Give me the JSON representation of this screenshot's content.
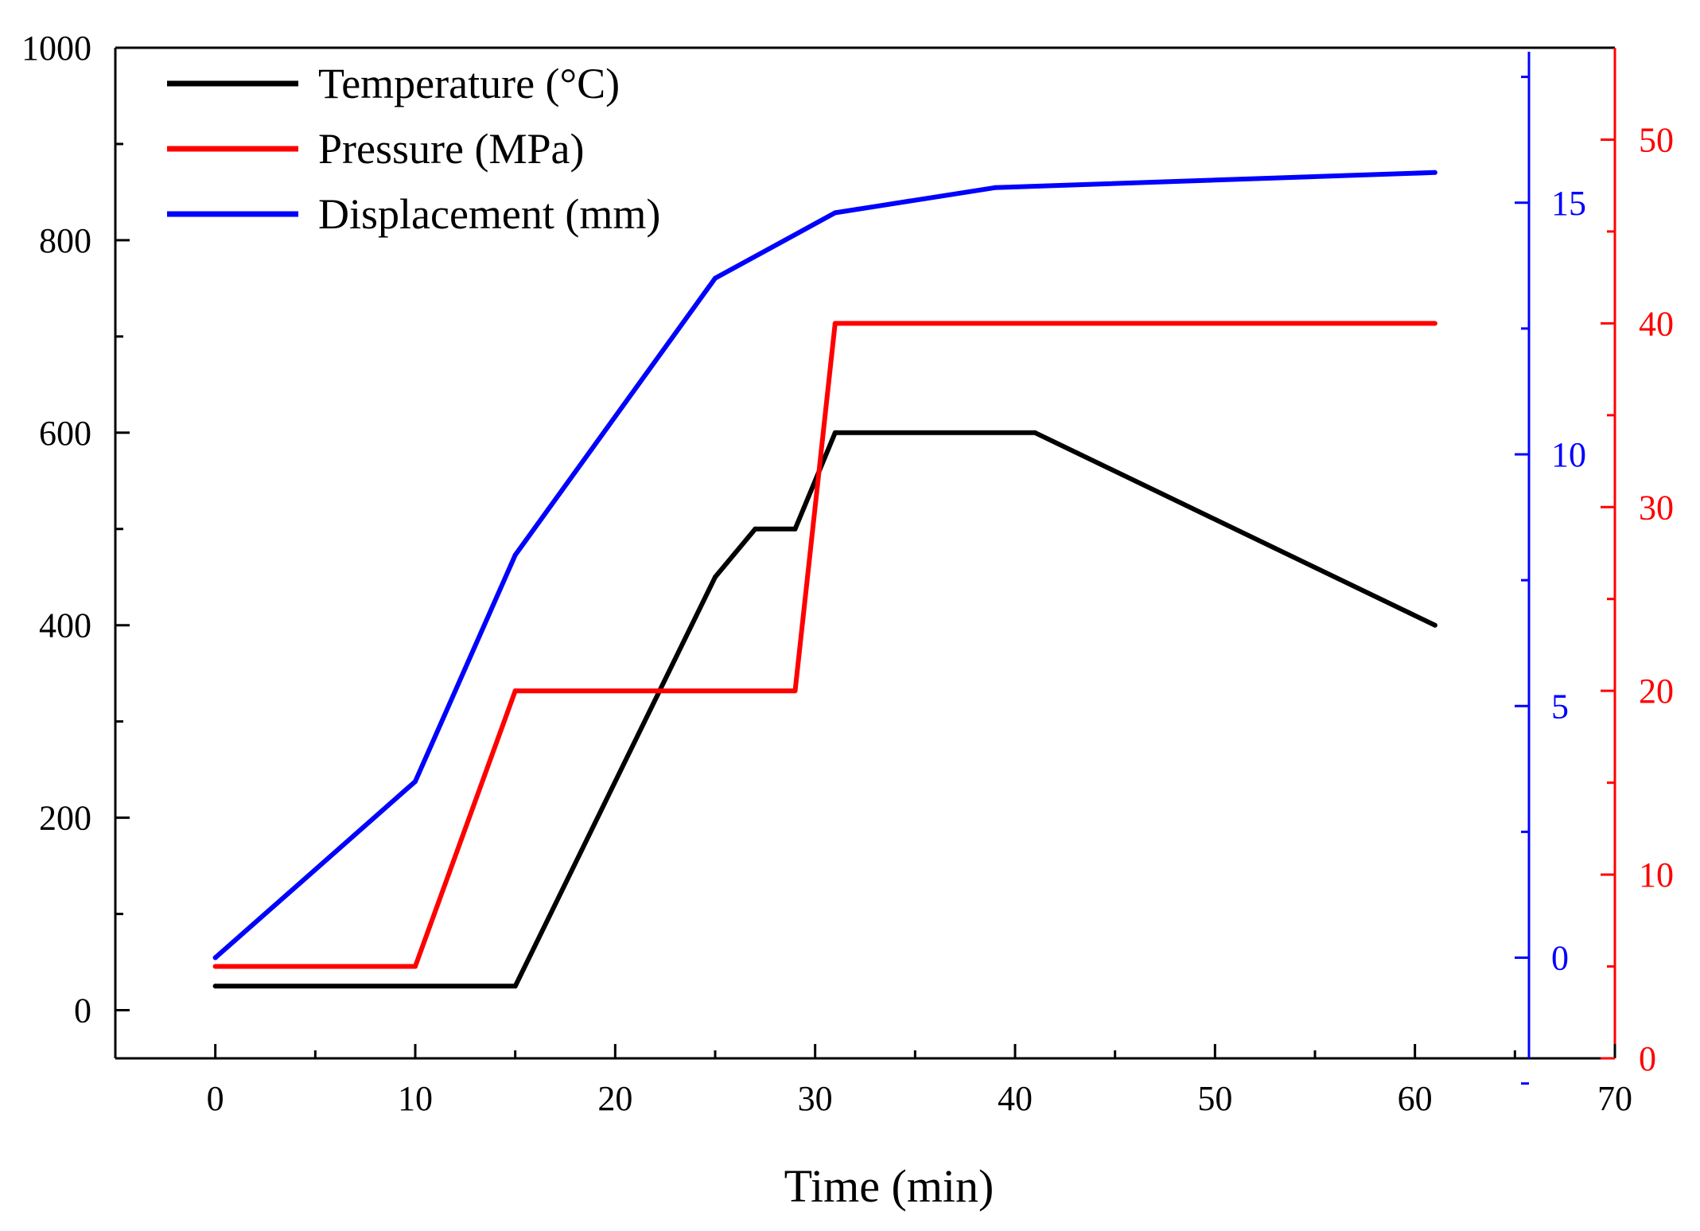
{
  "chart_data": {
    "type": "line",
    "title": "",
    "xlabel": "Time (min)",
    "xlim": [
      -5,
      70
    ],
    "x_ticks": [
      0,
      10,
      20,
      30,
      40,
      50,
      60,
      70
    ],
    "x_tick_labels": [
      "0",
      "10",
      "20",
      "30",
      "40",
      "50",
      "60",
      "70"
    ],
    "grid": false,
    "legend_position": "top-left",
    "axes": [
      {
        "id": "left",
        "series_name": "Temperature (°C)",
        "color": "#000000",
        "ylim": [
          -50,
          1000
        ],
        "ticks": [
          0,
          200,
          400,
          600,
          800,
          1000
        ],
        "tick_labels": [
          "0",
          "200",
          "400",
          "600",
          "800",
          "1000"
        ]
      },
      {
        "id": "blue",
        "series_name": "Displacement (mm)",
        "color": "#0000ff",
        "ylim": [
          -2,
          18
        ],
        "ticks": [
          0,
          5,
          10,
          15
        ],
        "tick_labels": [
          "0",
          "5",
          "10",
          "15"
        ]
      },
      {
        "id": "red",
        "series_name": "Pressure (MPa)",
        "color": "#ff0000",
        "ylim": [
          0,
          55
        ],
        "ticks": [
          0,
          10,
          20,
          30,
          40,
          50
        ],
        "tick_labels": [
          "0",
          "10",
          "20",
          "30",
          "40",
          "50"
        ]
      }
    ],
    "series": [
      {
        "name": "Temperature (°C)",
        "axis": "left",
        "color": "#000000",
        "x": [
          0,
          15,
          25,
          27,
          29,
          31,
          41,
          61
        ],
        "y": [
          25,
          25,
          450,
          500,
          500,
          600,
          600,
          400
        ]
      },
      {
        "name": "Pressure (MPa)",
        "axis": "red",
        "color": "#ff0000",
        "x": [
          0,
          10,
          15,
          29,
          31,
          61
        ],
        "y": [
          5,
          5,
          20,
          20,
          40,
          40
        ]
      },
      {
        "name": "Displacement (mm)",
        "axis": "blue",
        "color": "#0000ff",
        "x": [
          0,
          10,
          15,
          25,
          31,
          39,
          61
        ],
        "y": [
          0,
          3.5,
          8,
          13.5,
          14.8,
          15.3,
          15.6
        ]
      }
    ]
  }
}
